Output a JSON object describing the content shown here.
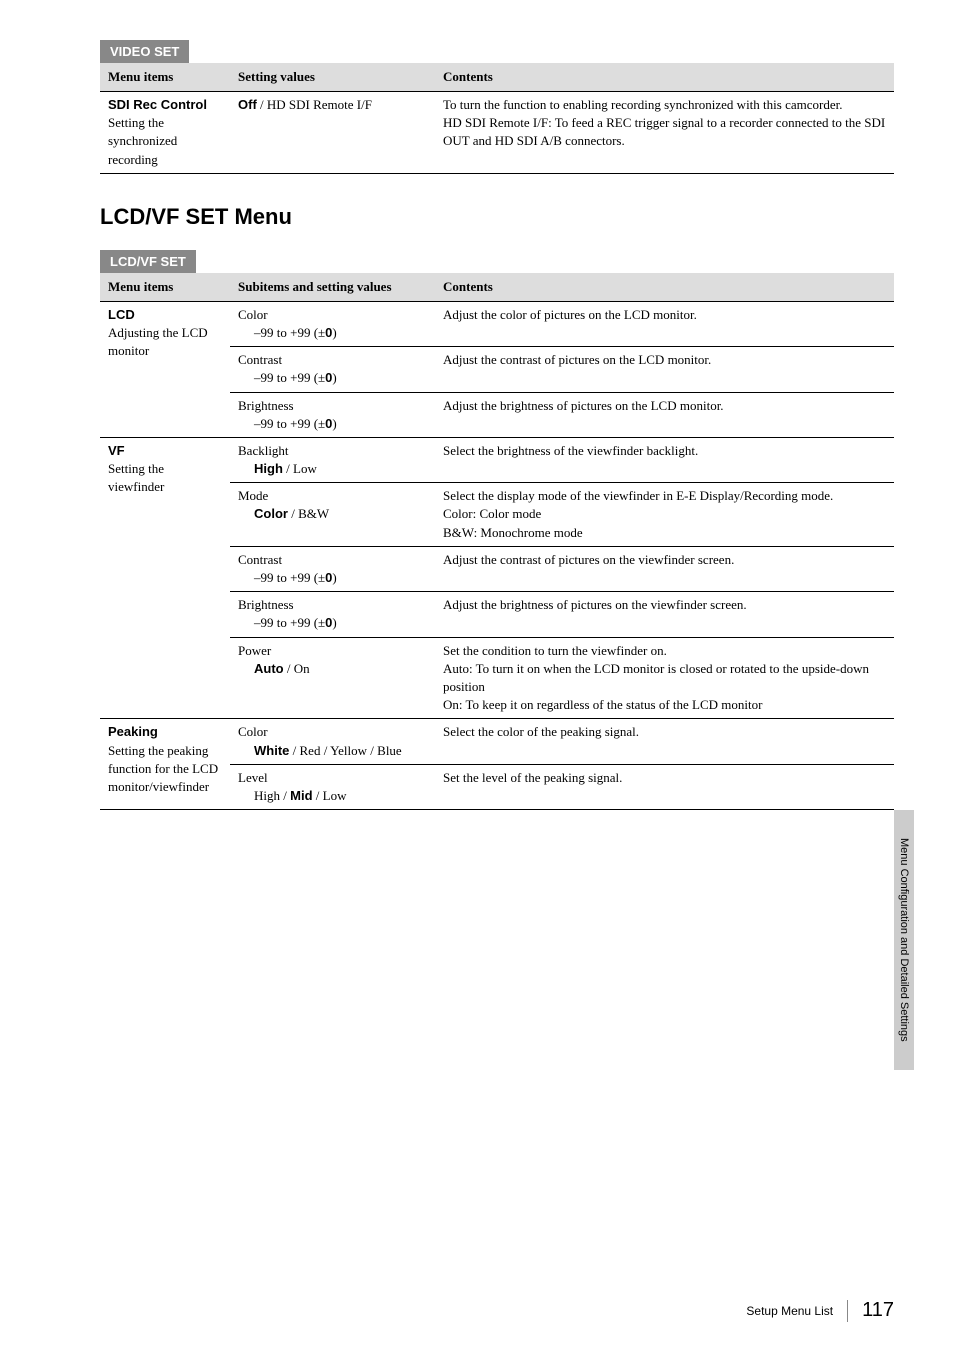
{
  "video_set": {
    "tab": "VIDEO SET",
    "headers": {
      "items": "Menu items",
      "setting": "Setting values",
      "contents": "Contents"
    },
    "row": {
      "item_title": "SDI Rec Control",
      "item_desc": "Setting the synchronized recording",
      "setting_bold": "Off",
      "setting_rest": " / HD SDI Remote I/F",
      "contents_p1": "To turn the function to enabling recording synchronized with this camcorder.",
      "contents_p2": "HD SDI Remote I/F: To feed a REC trigger signal to a recorder connected to the SDI OUT and HD SDI A/B connectors."
    }
  },
  "lcd_vf_heading": "LCD/VF SET Menu",
  "lcd_vf": {
    "tab": "LCD/VF SET",
    "headers": {
      "items": "Menu items",
      "setting": "Subitems and setting values",
      "contents": "Contents"
    },
    "lcd": {
      "item_title": "LCD",
      "item_desc": "Adjusting the LCD monitor",
      "subs": {
        "color": {
          "label": "Color",
          "range_pre": "–99 to +99 (±",
          "range_bold": "0",
          "range_post": ")",
          "contents": "Adjust the color of pictures on the LCD monitor."
        },
        "contrast": {
          "label": "Contrast",
          "range_pre": "–99 to +99 (±",
          "range_bold": "0",
          "range_post": ")",
          "contents": "Adjust the contrast of pictures on the LCD monitor."
        },
        "brightness": {
          "label": "Brightness",
          "range_pre": "–99 to +99 (±",
          "range_bold": "0",
          "range_post": ")",
          "contents": "Adjust the brightness of pictures on the LCD monitor."
        }
      }
    },
    "vf": {
      "item_title": "VF",
      "item_desc": "Setting the viewfinder",
      "subs": {
        "backlight": {
          "label": "Backlight",
          "val_bold": "High",
          "val_rest": " / Low",
          "contents": "Select the brightness of the viewfinder backlight."
        },
        "mode": {
          "label": "Mode",
          "val_bold": "Color",
          "val_rest": " / B&W",
          "c1": "Select the display mode of the viewfinder in E-E Display/Recording mode.",
          "c2": "Color: Color mode",
          "c3": "B&W: Monochrome mode"
        },
        "contrast": {
          "label": "Contrast",
          "range_pre": "–99 to +99 (±",
          "range_bold": "0",
          "range_post": ")",
          "contents": "Adjust the contrast of pictures on the viewfinder screen."
        },
        "brightness": {
          "label": "Brightness",
          "range_pre": "–99 to +99 (±",
          "range_bold": "0",
          "range_post": ")",
          "contents": "Adjust the brightness of pictures on the viewfinder screen."
        },
        "power": {
          "label": "Power",
          "val_bold": "Auto",
          "val_rest": " / On",
          "c1": "Set the condition to turn the viewfinder on.",
          "c2": "Auto: To turn it on when the LCD monitor is closed or rotated to the upside-down position",
          "c3": "On: To keep it on regardless of the status of the LCD monitor"
        }
      }
    },
    "peaking": {
      "item_title": "Peaking",
      "item_desc": "Setting the peaking function for the LCD monitor/viewfinder",
      "subs": {
        "color": {
          "label": "Color",
          "val_bold": "White",
          "val_rest": " / Red / Yellow / Blue",
          "contents": "Select the color of the peaking signal."
        },
        "level": {
          "label": "Level",
          "val_pre": "High / ",
          "val_bold": "Mid",
          "val_post": " / Low",
          "contents": "Set the level of the peaking signal."
        }
      }
    }
  },
  "side_tab": "Menu Configuration and Detailed Settings",
  "footer_label": "Setup Menu List",
  "page_number": "117"
}
